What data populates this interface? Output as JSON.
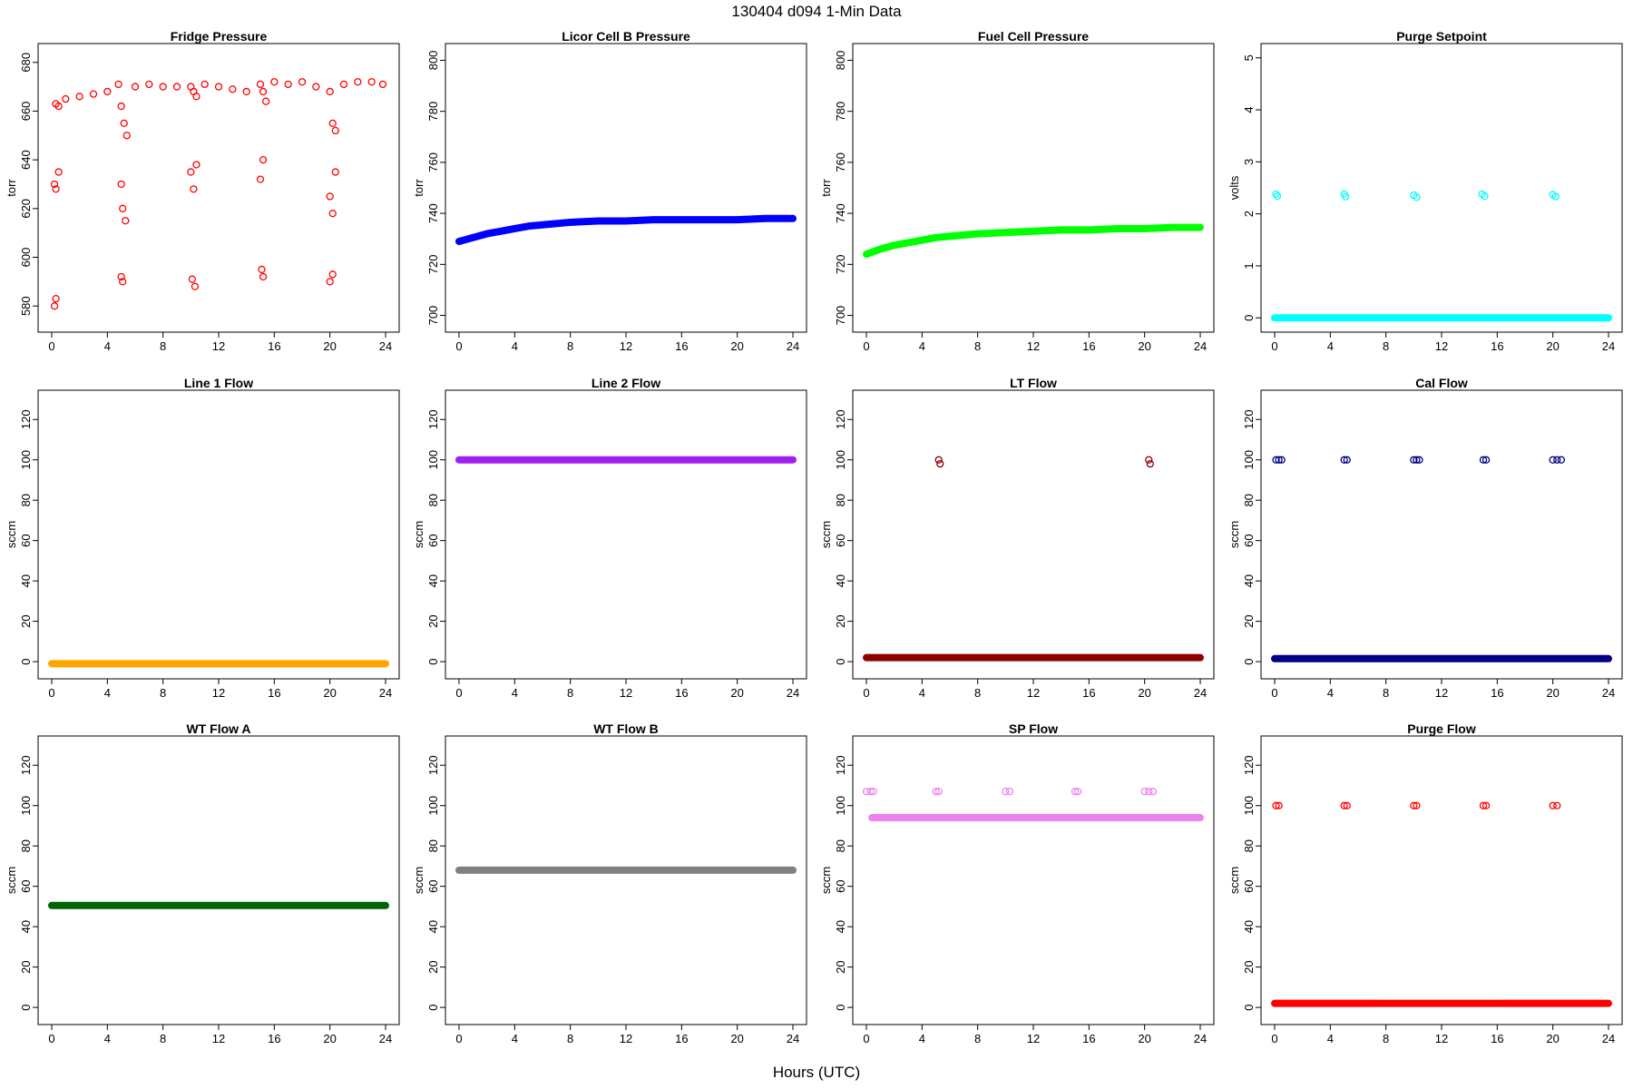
{
  "title": "130404   d094   1-Min Data",
  "x_axis_label": "Hours (UTC)",
  "chart_data": [
    {
      "type": "scatter",
      "title": "Fridge Pressure",
      "ylabel": "torr",
      "color": "#ff0000",
      "marker": "open-circle",
      "xlim": [
        0,
        24
      ],
      "ylim": [
        573,
        684
      ],
      "xticks": [
        0,
        4,
        8,
        12,
        16,
        20,
        24
      ],
      "yticks": [
        580,
        600,
        620,
        640,
        660,
        680
      ],
      "x": [
        0.3,
        0.5,
        1,
        2,
        3,
        4,
        4.8,
        5,
        5.2,
        5.4,
        6,
        7,
        8,
        9,
        10,
        10.2,
        10.4,
        11,
        12,
        13,
        14,
        15,
        15.2,
        15.4,
        16,
        17,
        18,
        19,
        20,
        20.2,
        20.4,
        21,
        22,
        23,
        23.8,
        0.2,
        0.3,
        0.5,
        5,
        5.1,
        5.3,
        10,
        10.2,
        10.4,
        15,
        15.2,
        20,
        20.2,
        20.4,
        0.2,
        0.3,
        5,
        5.1,
        10.1,
        10.3,
        15.1,
        15.2,
        20,
        20.2
      ],
      "y": [
        663,
        662,
        665,
        666,
        667,
        668,
        671,
        662,
        655,
        650,
        670,
        671,
        670,
        670,
        670,
        668,
        666,
        671,
        670,
        669,
        668,
        671,
        668,
        664,
        672,
        671,
        672,
        670,
        668,
        655,
        652,
        671,
        672,
        672,
        671,
        630,
        628,
        635,
        630,
        620,
        615,
        635,
        628,
        638,
        632,
        640,
        625,
        618,
        635,
        580,
        583,
        592,
        590,
        591,
        588,
        595,
        592,
        590,
        593
      ]
    },
    {
      "type": "line",
      "title": "Licor Cell B Pressure",
      "ylabel": "torr",
      "color": "#0000ff",
      "marker": "thick-line",
      "xlim": [
        0,
        24
      ],
      "ylim": [
        697,
        803
      ],
      "xticks": [
        0,
        4,
        8,
        12,
        16,
        20,
        24
      ],
      "yticks": [
        700,
        720,
        740,
        760,
        780,
        800
      ],
      "x": [
        0,
        1,
        2,
        3,
        4,
        5,
        6,
        8,
        10,
        12,
        14,
        16,
        18,
        20,
        22,
        24
      ],
      "y": [
        729,
        730.5,
        732,
        733,
        734,
        735,
        735.5,
        736.5,
        737,
        737,
        737.5,
        737.5,
        737.5,
        737.5,
        738,
        738
      ]
    },
    {
      "type": "line",
      "title": "Fuel Cell Pressure",
      "ylabel": "torr",
      "color": "#00ff00",
      "marker": "thick-line",
      "xlim": [
        0,
        24
      ],
      "ylim": [
        697,
        803
      ],
      "xticks": [
        0,
        4,
        8,
        12,
        16,
        20,
        24
      ],
      "yticks": [
        700,
        720,
        740,
        760,
        780,
        800
      ],
      "x": [
        0,
        1,
        2,
        3,
        4,
        5,
        6,
        8,
        10,
        12,
        14,
        16,
        18,
        20,
        22,
        24
      ],
      "y": [
        724,
        726,
        727.5,
        728.5,
        729.5,
        730.5,
        731,
        732,
        732.5,
        733,
        733.5,
        733.5,
        734,
        734,
        734.5,
        734.5
      ]
    },
    {
      "type": "scatter",
      "title": "Purge Setpoint",
      "ylabel": "volts",
      "color": "#00ffff",
      "marker": "open-circle",
      "xlim": [
        0,
        24
      ],
      "ylim": [
        -0.1,
        5.1
      ],
      "xticks": [
        0,
        4,
        8,
        12,
        16,
        20,
        24
      ],
      "yticks": [
        0,
        1,
        2,
        3,
        4,
        5
      ],
      "baseline": {
        "y": 0,
        "x_start": 0,
        "x_end": 24
      },
      "x": [
        0.1,
        0.2,
        5,
        5.1,
        10,
        10.2,
        14.9,
        15.1,
        20,
        20.2
      ],
      "y": [
        2.38,
        2.34,
        2.38,
        2.33,
        2.36,
        2.32,
        2.38,
        2.34,
        2.37,
        2.33
      ]
    },
    {
      "type": "line",
      "title": "Line 1 Flow",
      "ylabel": "sccm",
      "color": "#ffa500",
      "marker": "thick-line",
      "xlim": [
        0,
        24
      ],
      "ylim": [
        -4,
        130
      ],
      "xticks": [
        0,
        4,
        8,
        12,
        16,
        20,
        24
      ],
      "yticks": [
        0,
        20,
        40,
        60,
        80,
        100,
        120
      ],
      "x": [
        0,
        24
      ],
      "y": [
        -1,
        -1
      ]
    },
    {
      "type": "line",
      "title": "Line 2 Flow",
      "ylabel": "sccm",
      "color": "#a020f0",
      "marker": "thick-line",
      "xlim": [
        0,
        24
      ],
      "ylim": [
        -4,
        130
      ],
      "xticks": [
        0,
        4,
        8,
        12,
        16,
        20,
        24
      ],
      "yticks": [
        0,
        20,
        40,
        60,
        80,
        100,
        120
      ],
      "x": [
        0,
        24
      ],
      "y": [
        100,
        100
      ]
    },
    {
      "type": "scatter",
      "title": "LT Flow",
      "ylabel": "sccm",
      "color": "#8b0000",
      "marker": "open-circle",
      "xlim": [
        0,
        24
      ],
      "ylim": [
        -4,
        130
      ],
      "xticks": [
        0,
        4,
        8,
        12,
        16,
        20,
        24
      ],
      "yticks": [
        0,
        20,
        40,
        60,
        80,
        100,
        120
      ],
      "baseline": {
        "y": 2,
        "x_start": 0,
        "x_end": 24
      },
      "x": [
        5.2,
        5.3,
        20.3,
        20.4
      ],
      "y": [
        100,
        98,
        100,
        98
      ]
    },
    {
      "type": "scatter",
      "title": "Cal Flow",
      "ylabel": "sccm",
      "color": "#000080",
      "marker": "open-circle",
      "xlim": [
        0,
        24
      ],
      "ylim": [
        -4,
        130
      ],
      "xticks": [
        0,
        4,
        8,
        12,
        16,
        20,
        24
      ],
      "yticks": [
        0,
        20,
        40,
        60,
        80,
        100,
        120
      ],
      "baseline": {
        "y": 1.5,
        "x_start": 0,
        "x_end": 24
      },
      "x": [
        0.1,
        0.3,
        0.5,
        5,
        5.2,
        10,
        10.2,
        10.4,
        15,
        15.2,
        20,
        20.3,
        20.6
      ],
      "y": [
        100,
        100,
        100,
        100,
        100,
        100,
        100,
        100,
        100,
        100,
        100,
        100,
        100
      ]
    },
    {
      "type": "line",
      "title": "WT Flow A",
      "ylabel": "sccm",
      "color": "#006400",
      "marker": "thick-line",
      "xlim": [
        0,
        24
      ],
      "ylim": [
        -4,
        130
      ],
      "xticks": [
        0,
        4,
        8,
        12,
        16,
        20,
        24
      ],
      "yticks": [
        0,
        20,
        40,
        60,
        80,
        100,
        120
      ],
      "x": [
        0,
        24
      ],
      "y": [
        50.5,
        50.5
      ]
    },
    {
      "type": "line",
      "title": "WT Flow B",
      "ylabel": "sccm",
      "color": "#808080",
      "marker": "thick-line",
      "xlim": [
        0,
        24
      ],
      "ylim": [
        -4,
        130
      ],
      "xticks": [
        0,
        4,
        8,
        12,
        16,
        20,
        24
      ],
      "yticks": [
        0,
        20,
        40,
        60,
        80,
        100,
        120
      ],
      "x": [
        0,
        24
      ],
      "y": [
        68,
        68
      ]
    },
    {
      "type": "scatter",
      "title": "SP Flow",
      "ylabel": "sccm",
      "color": "#ee82ee",
      "marker": "open-circle",
      "xlim": [
        0,
        24
      ],
      "ylim": [
        -4,
        130
      ],
      "xticks": [
        0,
        4,
        8,
        12,
        16,
        20,
        24
      ],
      "yticks": [
        0,
        20,
        40,
        60,
        80,
        100,
        120
      ],
      "baseline": {
        "y": 94,
        "x_start": 0.4,
        "x_end": 24
      },
      "x": [
        0,
        0.3,
        0.5,
        5,
        5.2,
        10,
        10.3,
        15,
        15.2,
        20,
        20.3,
        20.6
      ],
      "y": [
        107,
        107,
        107,
        107,
        107,
        107,
        107,
        107,
        107,
        107,
        107,
        107
      ]
    },
    {
      "type": "scatter",
      "title": "Purge Flow",
      "ylabel": "sccm",
      "color": "#ff0000",
      "marker": "open-circle",
      "xlim": [
        0,
        24
      ],
      "ylim": [
        -4,
        130
      ],
      "xticks": [
        0,
        4,
        8,
        12,
        16,
        20,
        24
      ],
      "yticks": [
        0,
        20,
        40,
        60,
        80,
        100,
        120
      ],
      "baseline": {
        "y": 2,
        "x_start": 0,
        "x_end": 24
      },
      "x": [
        0.1,
        0.3,
        5,
        5.2,
        10,
        10.2,
        15,
        15.2,
        20,
        20.3
      ],
      "y": [
        100,
        100,
        100,
        100,
        100,
        100,
        100,
        100,
        100,
        100
      ]
    }
  ]
}
